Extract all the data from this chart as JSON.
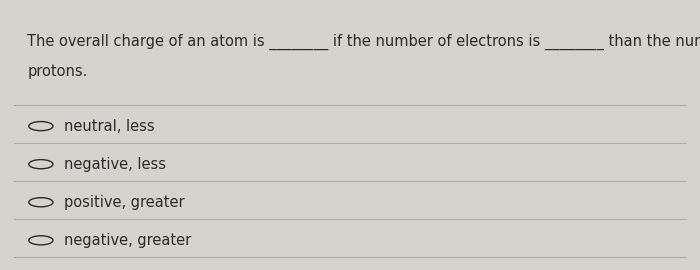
{
  "question_line1": "The overall charge of an atom is ________ if the number of electrons is ________ than the number of",
  "question_line2": "protons.",
  "options": [
    "neutral, less",
    "negative, less",
    "positive, greater",
    "negative, greater"
  ],
  "bg_color": "#d6d3ce",
  "panel_color": "#e8e5e0",
  "text_color": "#2a2a2a",
  "divider_color": "#b0aca6",
  "question_fontsize": 10.5,
  "option_fontsize": 10.5,
  "fig_width": 7.0,
  "fig_height": 2.7
}
